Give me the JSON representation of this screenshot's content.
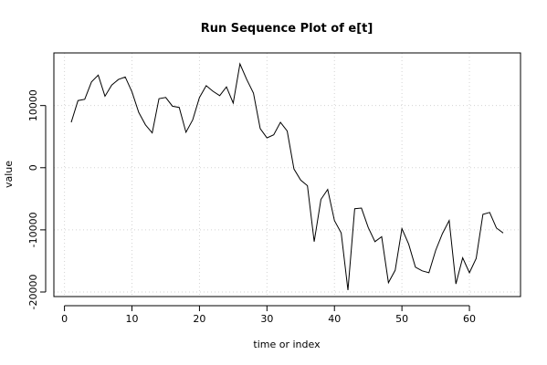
{
  "chart_data": {
    "type": "line",
    "title": "Run Sequence Plot of e[t]",
    "xlabel": "time or index",
    "ylabel": "value",
    "xlim": [
      1,
      65
    ],
    "ylim": [
      -20000,
      17000
    ],
    "x_ticks": [
      0,
      10,
      20,
      30,
      40,
      50,
      60
    ],
    "y_ticks": [
      -20000,
      -10000,
      0,
      10000
    ],
    "grid": true,
    "series": [
      {
        "x": [
          1,
          2,
          3,
          4,
          5,
          6,
          7,
          8,
          9,
          10,
          11,
          12,
          13,
          14,
          15,
          16,
          17,
          18,
          19,
          20,
          21,
          22,
          23,
          24,
          25,
          26,
          27,
          28,
          29,
          30,
          31,
          32,
          33,
          34,
          35,
          36,
          37,
          38,
          39,
          40,
          41,
          42,
          43,
          44,
          45,
          46,
          47,
          48,
          49,
          50,
          51,
          52,
          53,
          54,
          55,
          56,
          57,
          58,
          59,
          60,
          61,
          62,
          63,
          64,
          65
        ],
        "values": [
          7300,
          10800,
          11000,
          13800,
          14900,
          11500,
          13300,
          14200,
          14600,
          12200,
          8900,
          6900,
          5600,
          11100,
          11300,
          9900,
          9700,
          5700,
          7700,
          11300,
          13200,
          12300,
          11600,
          13000,
          10400,
          16700,
          14200,
          12000,
          6300,
          4800,
          5300,
          7300,
          5900,
          -200,
          -2000,
          -2900,
          -11900,
          -5100,
          -3500,
          -8500,
          -10500,
          -19700,
          -6600,
          -6500,
          -9600,
          -11900,
          -11100,
          -18500,
          -16500,
          -9800,
          -12300,
          -16000,
          -16600,
          -16900,
          -13300,
          -10600,
          -8500,
          -18700,
          -14500,
          -16900,
          -14600,
          -7500,
          -7200,
          -9700,
          -10500
        ]
      }
    ]
  }
}
